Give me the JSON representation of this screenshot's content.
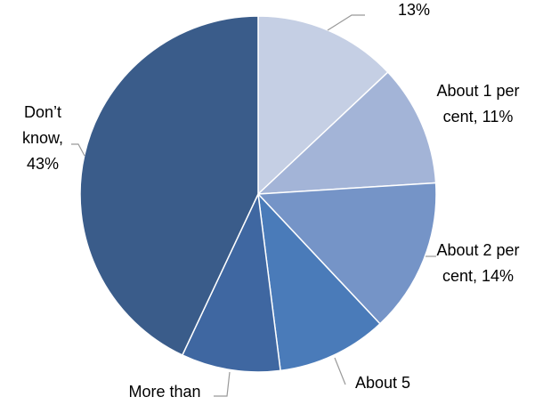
{
  "chart_data": {
    "type": "pie",
    "categories": [
      null,
      "About 1 per cent,",
      "About 2 per cent,",
      "About 5",
      "More than",
      "Don’t know,"
    ],
    "values": [
      13,
      11,
      14,
      10,
      9,
      43
    ],
    "value_labels": [
      "13%",
      "11%",
      "14%",
      null,
      null,
      "43%"
    ],
    "colors": [
      "#c5cfe4",
      "#a3b4d7",
      "#7594c7",
      "#4a7bb9",
      "#3f67a1",
      "#3a5c8a"
    ]
  }
}
